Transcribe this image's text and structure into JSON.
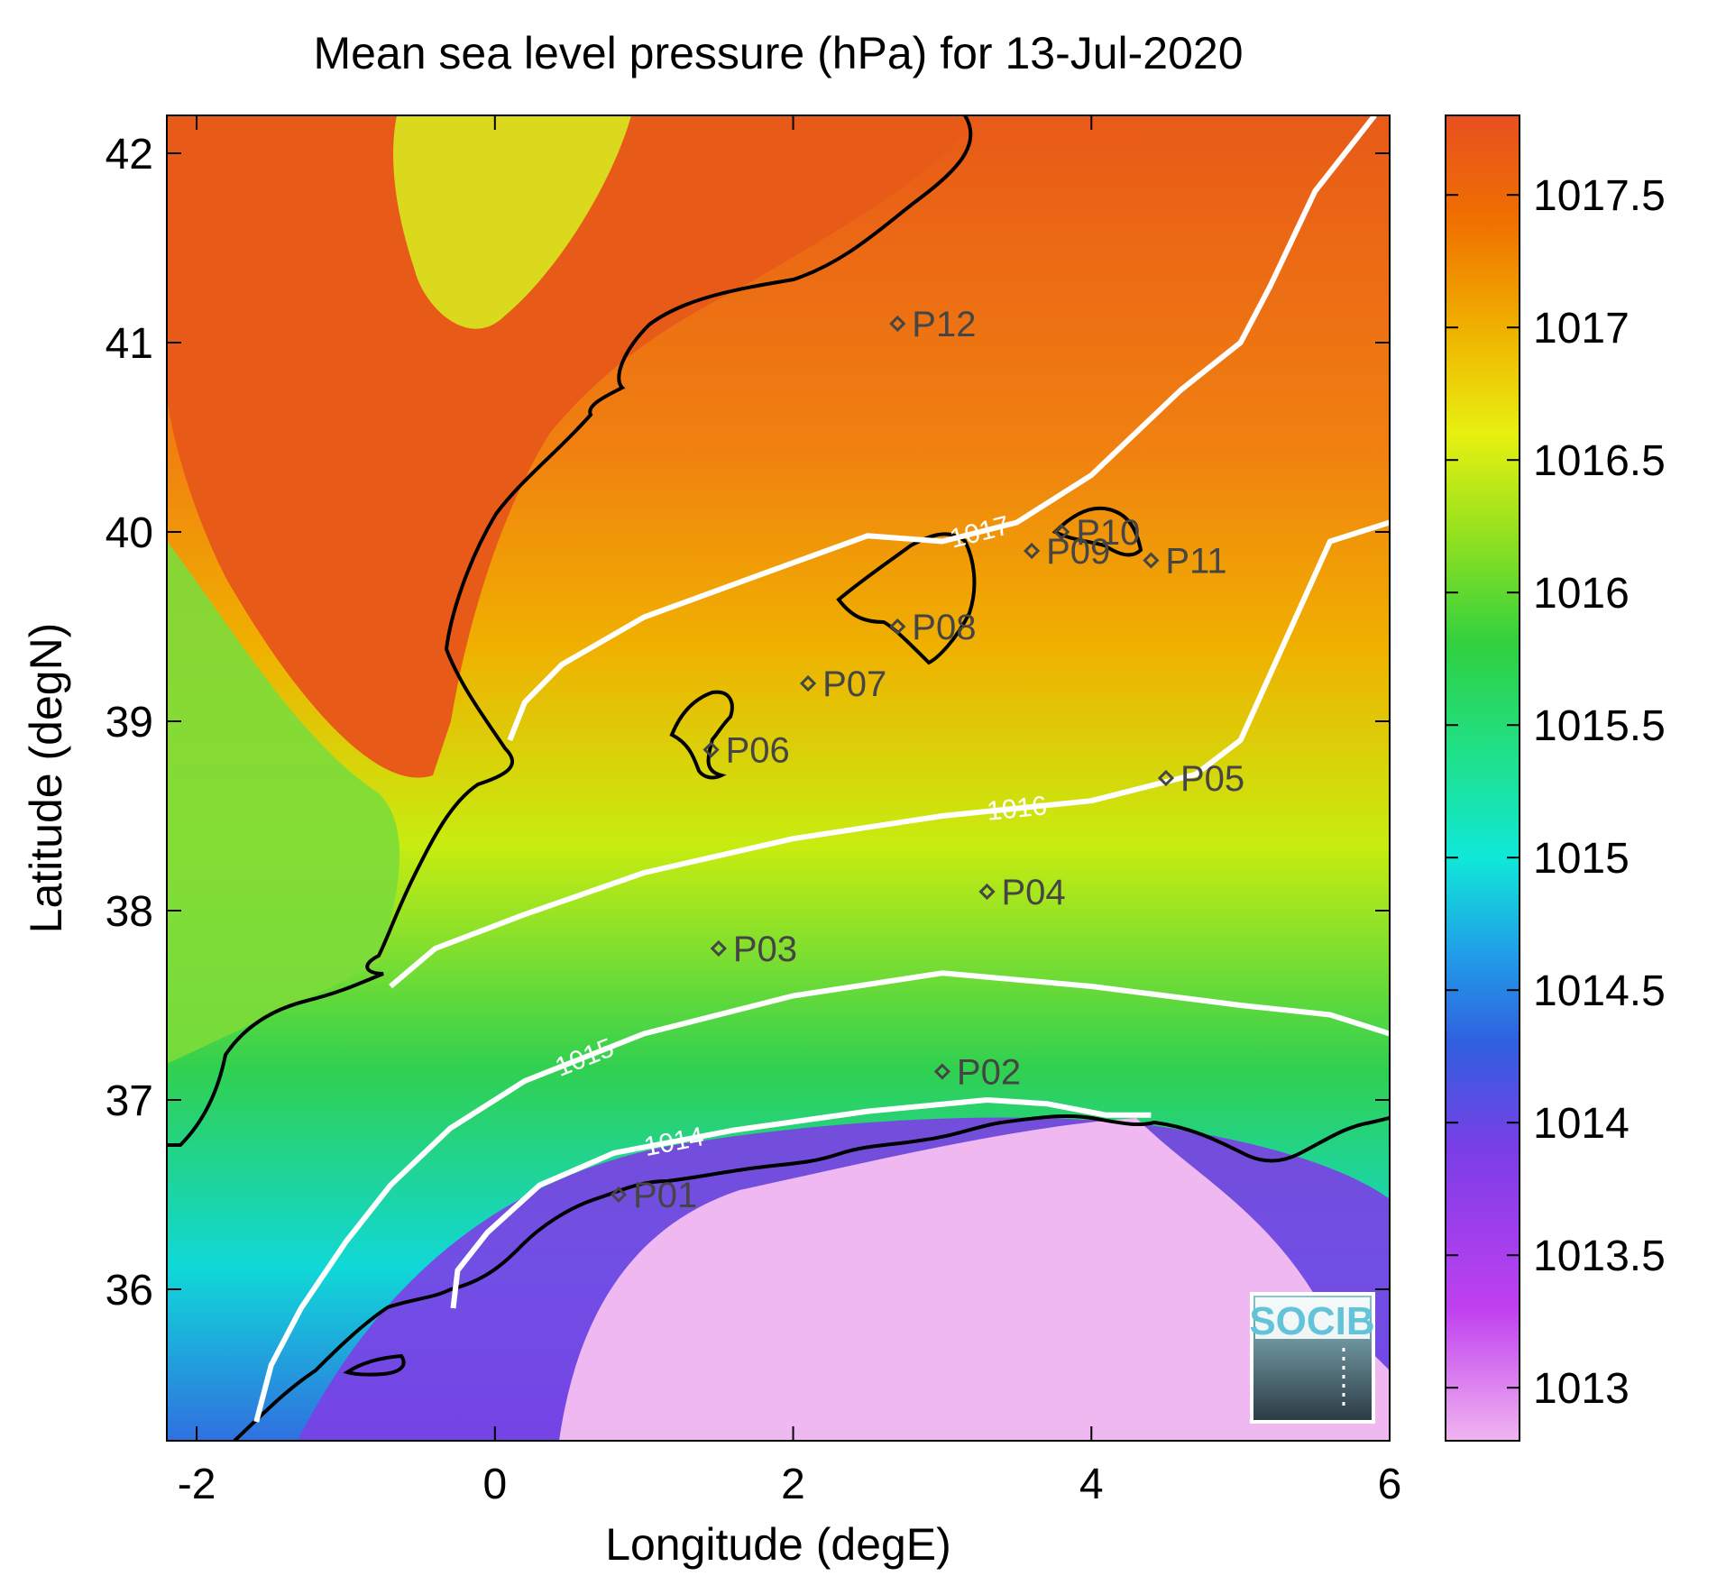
{
  "title": "Mean sea level pressure (hPa) for 13-Jul-2020",
  "axes": {
    "xlabel": "Longitude (degE)",
    "ylabel": "Latitude (degN)",
    "xlim": [
      -2.2,
      6.0
    ],
    "ylim": [
      35.2,
      42.2
    ],
    "xticks": [
      {
        "value": -2,
        "label": "-2"
      },
      {
        "value": 0,
        "label": "0"
      },
      {
        "value": 2,
        "label": "2"
      },
      {
        "value": 4,
        "label": "4"
      },
      {
        "value": 6,
        "label": "6"
      }
    ],
    "yticks": [
      {
        "value": 36,
        "label": "36"
      },
      {
        "value": 37,
        "label": "37"
      },
      {
        "value": 38,
        "label": "38"
      },
      {
        "value": 39,
        "label": "39"
      },
      {
        "value": 40,
        "label": "40"
      },
      {
        "value": 41,
        "label": "41"
      },
      {
        "value": 42,
        "label": "42"
      }
    ]
  },
  "colorbar": {
    "range": [
      1012.8,
      1017.8
    ],
    "ticks": [
      {
        "value": 1013,
        "label": "1013"
      },
      {
        "value": 1013.5,
        "label": "1013.5"
      },
      {
        "value": 1014,
        "label": "1014"
      },
      {
        "value": 1014.5,
        "label": "1014.5"
      },
      {
        "value": 1015,
        "label": "1015"
      },
      {
        "value": 1015.5,
        "label": "1015.5"
      },
      {
        "value": 1016,
        "label": "1016"
      },
      {
        "value": 1016.5,
        "label": "1016.5"
      },
      {
        "value": 1017,
        "label": "1017"
      },
      {
        "value": 1017.5,
        "label": "1017.5"
      }
    ],
    "colors": [
      "#f0b4f0",
      "#c040f0",
      "#7a3ee6",
      "#3060e0",
      "#20a0e8",
      "#10e8d8",
      "#20e088",
      "#30d040",
      "#90e020",
      "#e8f010",
      "#f0b000",
      "#f07000",
      "#e85020"
    ]
  },
  "stations": [
    {
      "label": "P01",
      "lon": 0.83,
      "lat": 36.5
    },
    {
      "label": "P02",
      "lon": 3.0,
      "lat": 37.15
    },
    {
      "label": "P03",
      "lon": 1.5,
      "lat": 37.8
    },
    {
      "label": "P04",
      "lon": 3.3,
      "lat": 38.1
    },
    {
      "label": "P05",
      "lon": 4.5,
      "lat": 38.7
    },
    {
      "label": "P06",
      "lon": 1.45,
      "lat": 38.85
    },
    {
      "label": "P07",
      "lon": 2.1,
      "lat": 39.2
    },
    {
      "label": "P08",
      "lon": 2.7,
      "lat": 39.5
    },
    {
      "label": "P09",
      "lon": 3.6,
      "lat": 39.9
    },
    {
      "label": "P10",
      "lon": 3.8,
      "lat": 40.0
    },
    {
      "label": "P11",
      "lon": 4.4,
      "lat": 39.85
    },
    {
      "label": "P12",
      "lon": 2.7,
      "lat": 41.1
    }
  ],
  "contours": [
    {
      "level": 1014,
      "label": "1014",
      "points": [
        [
          -0.28,
          35.9
        ],
        [
          -0.25,
          36.1
        ],
        [
          -0.05,
          36.3
        ],
        [
          0.3,
          36.55
        ],
        [
          0.8,
          36.72
        ],
        [
          1.6,
          36.84
        ],
        [
          2.5,
          36.94
        ],
        [
          3.3,
          37.0
        ],
        [
          3.7,
          36.98
        ],
        [
          4.1,
          36.92
        ],
        [
          4.4,
          36.92
        ]
      ]
    },
    {
      "level": 1015,
      "label": "1015",
      "points": [
        [
          -1.6,
          35.3
        ],
        [
          -1.5,
          35.6
        ],
        [
          -1.3,
          35.9
        ],
        [
          -1.0,
          36.25
        ],
        [
          -0.7,
          36.55
        ],
        [
          -0.3,
          36.85
        ],
        [
          0.2,
          37.1
        ],
        [
          1.0,
          37.35
        ],
        [
          2.0,
          37.55
        ],
        [
          3.0,
          37.67
        ],
        [
          4.0,
          37.6
        ],
        [
          5.0,
          37.5
        ],
        [
          5.6,
          37.45
        ],
        [
          6.0,
          37.35
        ]
      ]
    },
    {
      "level": 1016,
      "label": "1016",
      "points": [
        [
          -0.7,
          37.6
        ],
        [
          -0.4,
          37.8
        ],
        [
          0.2,
          37.98
        ],
        [
          1.0,
          38.2
        ],
        [
          2.0,
          38.38
        ],
        [
          3.0,
          38.5
        ],
        [
          4.0,
          38.58
        ],
        [
          4.7,
          38.72
        ],
        [
          5.0,
          38.9
        ],
        [
          5.2,
          39.25
        ],
        [
          5.4,
          39.6
        ],
        [
          5.6,
          39.95
        ],
        [
          6.0,
          40.05
        ]
      ]
    },
    {
      "level": 1017,
      "label": "1017",
      "points": [
        [
          0.1,
          38.9
        ],
        [
          0.2,
          39.1
        ],
        [
          0.45,
          39.3
        ],
        [
          1.0,
          39.55
        ],
        [
          1.8,
          39.78
        ],
        [
          2.5,
          39.98
        ],
        [
          3.0,
          39.95
        ],
        [
          3.5,
          40.05
        ],
        [
          4.0,
          40.3
        ],
        [
          4.6,
          40.75
        ],
        [
          5.0,
          41.0
        ],
        [
          5.2,
          41.3
        ],
        [
          5.5,
          41.8
        ],
        [
          5.9,
          42.2
        ]
      ]
    }
  ],
  "logo": {
    "text": "SOCIB"
  }
}
